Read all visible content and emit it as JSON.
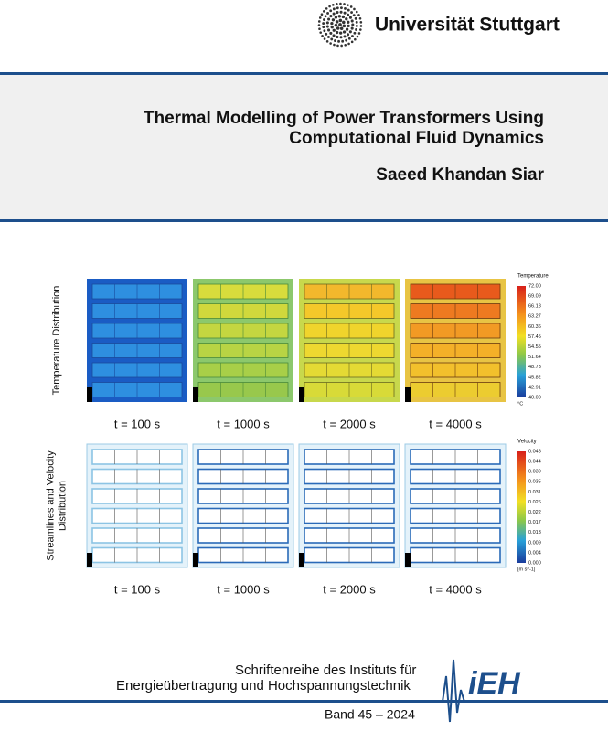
{
  "header": {
    "university": "Universität Stuttgart"
  },
  "title": [
    "Thermal Modelling of Power Transformers Using",
    "Computational Fluid Dynamics"
  ],
  "author": "Saeed Khandan Siar",
  "figure": {
    "rows": [
      {
        "label": [
          "Temperature Distribution"
        ],
        "colorbar": {
          "title": "Temperature",
          "ticks": [
            "72.00",
            "69.09",
            "66.18",
            "63.27",
            "60.36",
            "57.45",
            "54.55",
            "51.64",
            "48.73",
            "45.82",
            "42.91",
            "40.00"
          ],
          "unit": "°C"
        },
        "times": [
          "t = 100 s",
          "t = 1000 s",
          "t = 2000 s",
          "t = 4000 s"
        ]
      },
      {
        "label": [
          "Streamlines and Velocity",
          "Distribution"
        ],
        "colorbar": {
          "title": "Velocity",
          "ticks": [
            "0.048",
            "0.044",
            "0.039",
            "0.035",
            "0.031",
            "0.026",
            "0.022",
            "0.017",
            "0.013",
            "0.009",
            "0.004",
            "0.000"
          ],
          "unit": "[m s^-1]"
        },
        "times": [
          "t = 100 s",
          "t = 1000 s",
          "t = 2000 s",
          "t = 4000 s"
        ]
      }
    ]
  },
  "series": [
    "Schriftenreihe des Instituts für",
    "Energieübertragung und Hochspannungstechnik"
  ],
  "volume": "Band 45 – 2024",
  "logo_text": "iEH"
}
